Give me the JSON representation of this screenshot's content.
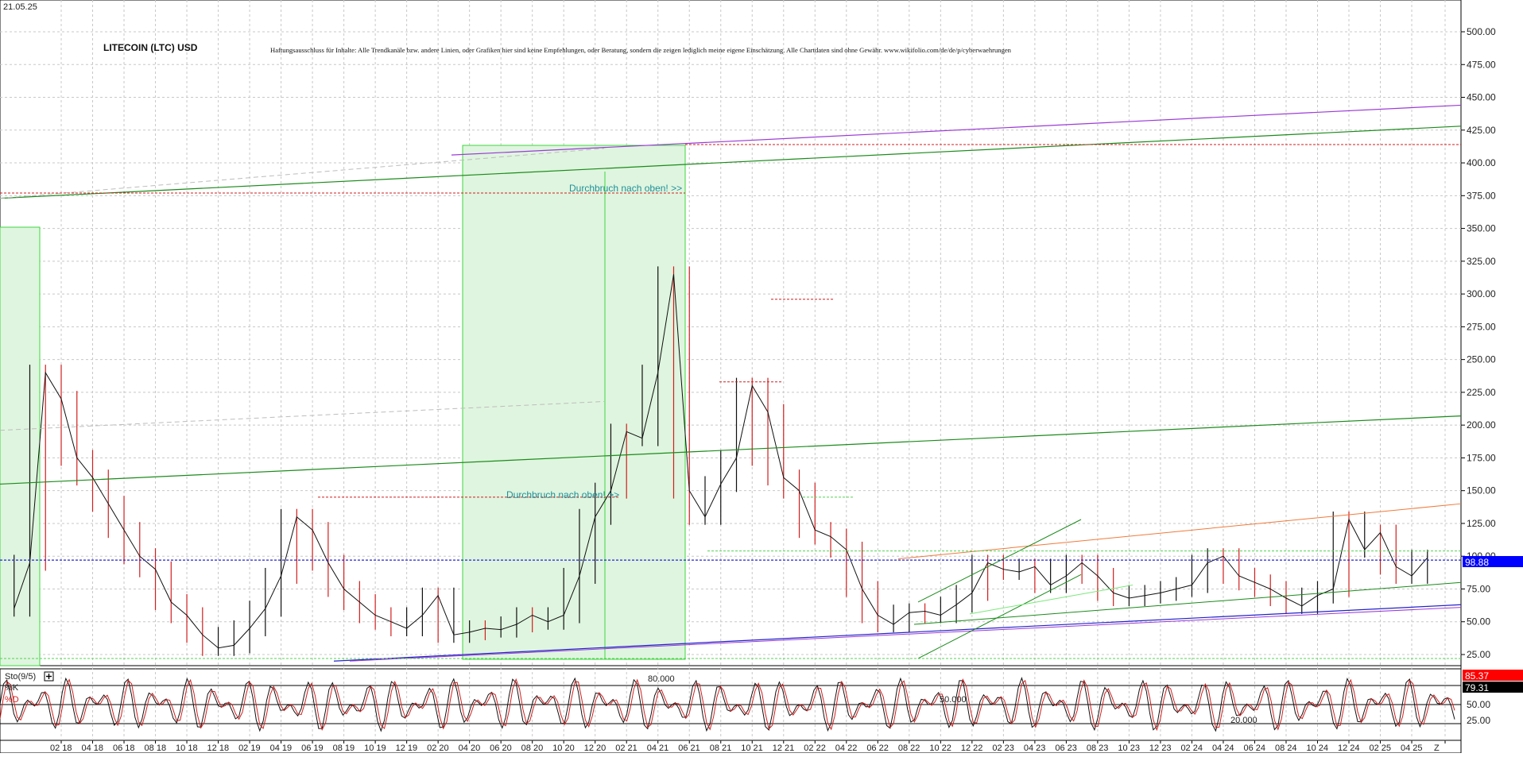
{
  "date_stamp": "21.05.25",
  "title": "LITECOIN (LTC) USD",
  "disclaimer": "Haftungsausschluss für Inhalte: Alle Trendkanäle bzw. andere Linien, oder Grafiken hier sind keine Empfehlungen, oder Beratung, sondern die zeigen lediglich meine eigene Einschätzung. Alle Chartdaten sind ohne Gewähr.  www.wikifolio.com/de/de/p/cyberwaehrungen",
  "colors": {
    "price_up": "#101010",
    "price_down": "#d21e1e",
    "trend_green": "#1b8a1b",
    "trend_purple": "#9b3bd6",
    "trend_orange": "#f07a3a",
    "trend_blue": "#2323c8",
    "box_fill": "#dff5df",
    "box_stroke": "#3cd63c",
    "dashed_red": "#d21e1e",
    "dashed_blue": "#2323d6",
    "current_price_bg": "#0000ff",
    "k_bg": "#ff0000",
    "d_bg": "#000000"
  },
  "chart_data": [
    {
      "type": "line",
      "title": "LITECOIN (LTC) USD",
      "y_axis_side": "right",
      "ylim": [
        20,
        525
      ],
      "yticks": [
        "500.00",
        "475.00",
        "450.00",
        "425.00",
        "400.00",
        "375.00",
        "350.00",
        "325.00",
        "300.00",
        "275.00",
        "250.00",
        "225.00",
        "200.00",
        "175.00",
        "150.00",
        "125.00",
        "100.00",
        "75.00",
        "50.00",
        "25.00"
      ],
      "current_price": "98.88",
      "x_labels": [
        "02 18",
        "04 18",
        "06 18",
        "08 18",
        "10 18",
        "12 18",
        "02 19",
        "04 19",
        "06 19",
        "08 19",
        "10 19",
        "12 19",
        "02 20",
        "04 20",
        "06 20",
        "08 20",
        "10 20",
        "12 20",
        "02 21",
        "04 21",
        "06 21",
        "08 21",
        "10 21",
        "12 21",
        "02 22",
        "04 22",
        "06 22",
        "08 22",
        "10 22",
        "12 22",
        "02 23",
        "04 23",
        "06 23",
        "08 23",
        "10 23",
        "12 23",
        "02 24",
        "04 24",
        "06 24",
        "08 24",
        "10 24",
        "12 24",
        "02 25",
        "04 25",
        "Z"
      ],
      "series": [
        {
          "x": [
            "2017-11",
            "2017-12",
            "2018-01",
            "2018-02",
            "2018-03",
            "2018-04",
            "2018-05",
            "2018-06",
            "2018-07",
            "2018-08",
            "2018-09",
            "2018-10",
            "2018-11",
            "2018-12",
            "2019-01",
            "2019-02",
            "2019-03",
            "2019-04",
            "2019-05",
            "2019-06",
            "2019-07",
            "2019-08",
            "2019-09",
            "2019-10",
            "2019-11",
            "2019-12",
            "2020-01",
            "2020-02",
            "2020-03",
            "2020-04",
            "2020-05",
            "2020-06",
            "2020-07",
            "2020-08",
            "2020-09",
            "2020-10",
            "2020-11",
            "2020-12",
            "2021-01",
            "2021-02",
            "2021-03",
            "2021-04",
            "2021-05",
            "2021-06",
            "2021-07",
            "2021-08",
            "2021-09",
            "2021-10",
            "2021-11",
            "2021-12",
            "2022-01",
            "2022-02",
            "2022-03",
            "2022-04",
            "2022-05",
            "2022-06",
            "2022-07",
            "2022-08",
            "2022-09",
            "2022-10",
            "2022-11",
            "2022-12",
            "2023-01",
            "2023-02",
            "2023-03",
            "2023-04",
            "2023-05",
            "2023-06",
            "2023-07",
            "2023-08",
            "2023-09",
            "2023-10",
            "2023-11",
            "2023-12",
            "2024-01",
            "2024-02",
            "2024-03",
            "2024-04",
            "2024-05",
            "2024-06",
            "2024-07",
            "2024-08",
            "2024-09",
            "2024-10",
            "2024-11",
            "2024-12",
            "2025-01",
            "2025-02",
            "2025-03",
            "2025-04",
            "2025-05"
          ],
          "values": [
            60,
            95,
            240,
            220,
            175,
            160,
            140,
            120,
            100,
            90,
            65,
            55,
            40,
            30,
            32,
            45,
            60,
            85,
            130,
            120,
            95,
            75,
            65,
            55,
            50,
            45,
            55,
            70,
            40,
            42,
            45,
            44,
            48,
            55,
            50,
            55,
            85,
            130,
            150,
            195,
            190,
            240,
            315,
            150,
            130,
            155,
            175,
            230,
            210,
            160,
            150,
            120,
            115,
            105,
            75,
            55,
            48,
            57,
            58,
            55,
            63,
            72,
            95,
            90,
            88,
            92,
            78,
            85,
            95,
            85,
            72,
            68,
            70,
            72,
            75,
            78,
            95,
            100,
            85,
            80,
            75,
            68,
            62,
            70,
            75,
            128,
            105,
            118,
            92,
            85,
            98.88
          ]
        }
      ]
    },
    {
      "type": "line",
      "title": "Sto(9/5)",
      "y_axis_side": "right",
      "ylim": [
        0,
        100
      ],
      "yticks": [
        "50.00",
        "25.00"
      ],
      "series": [
        {
          "name": "%K",
          "value_label": "85.37"
        },
        {
          "name": "%D",
          "value_label": "79.31"
        }
      ],
      "annotations": [
        "80.000",
        "50.000",
        "20.000"
      ]
    }
  ],
  "annotations": {
    "breakout_top": "Durchbruch nach oben! >>",
    "breakout_mid": "Durchbruch nach oben! >>"
  },
  "toolbar": {
    "expand_icon": "plus-box-icon"
  }
}
